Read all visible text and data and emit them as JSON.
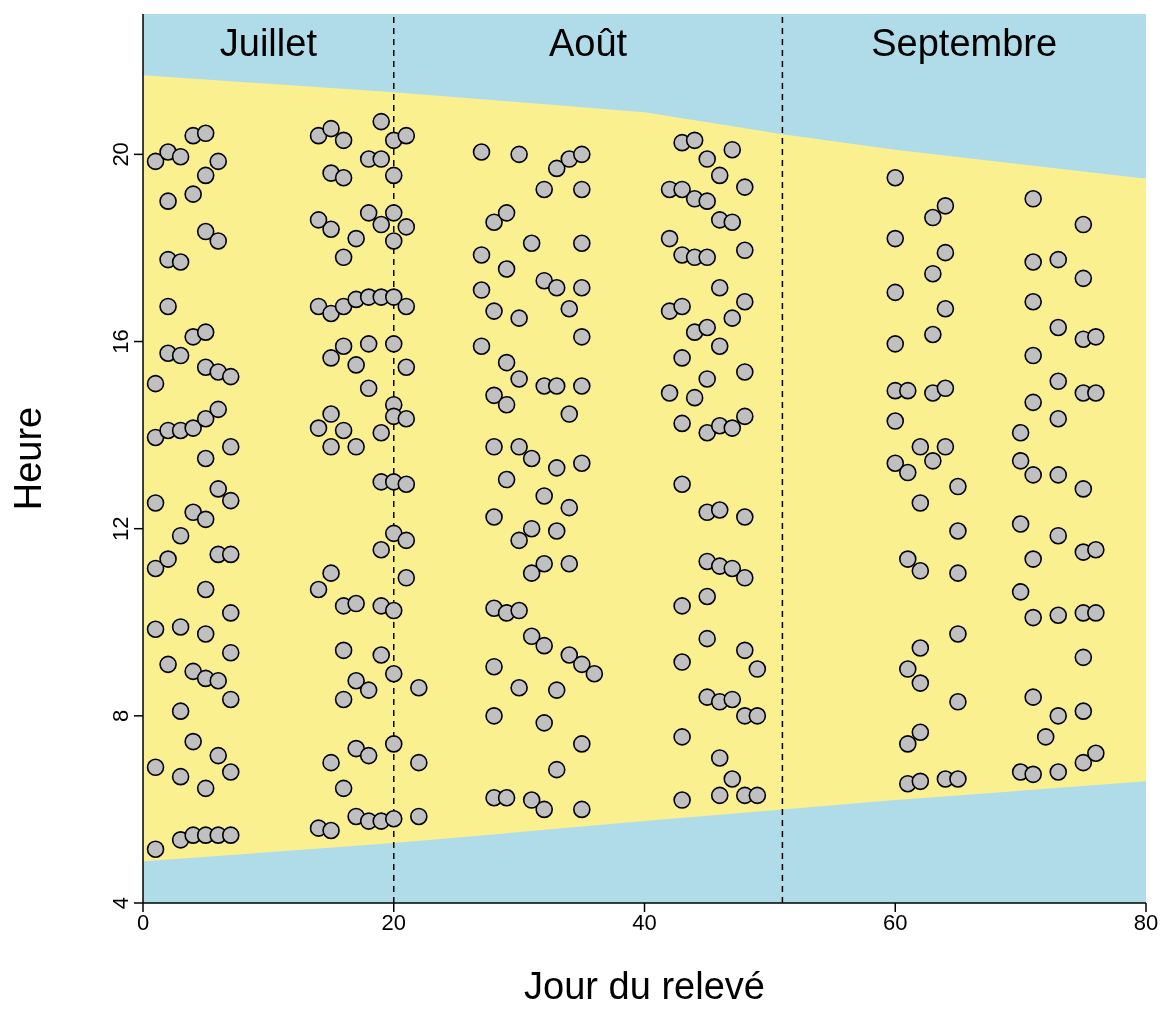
{
  "chart_data": {
    "type": "scatter",
    "xlabel": "Jour du relevé",
    "ylabel": "Heure",
    "xlim": [
      0,
      80
    ],
    "xticks": [
      0,
      20,
      40,
      60,
      80
    ],
    "ylim": [
      4,
      23
    ],
    "yticks": [
      4,
      8,
      12,
      16,
      20
    ],
    "grid": false,
    "legend": false,
    "ref_lines": [
      {
        "axis": "x",
        "value": 20,
        "color": "#000000",
        "line_style": "dashed"
      },
      {
        "axis": "x",
        "value": 51,
        "color": "#000000",
        "line_style": "dashed"
      }
    ],
    "bands": [
      {
        "axis": "y",
        "from": 19.48,
        "to": 23,
        "color": "#b0dcea"
      }
    ],
    "annotations": [
      "Juillet",
      "Août",
      "Septembre"
    ],
    "series": [
      {
        "color": "#c0c0c0",
        "marker": "circle",
        "x": [
          1,
          1,
          1,
          1,
          1,
          1,
          1,
          1,
          2,
          2,
          2,
          2,
          2,
          2,
          2,
          2,
          3,
          3,
          3,
          3,
          3,
          3,
          3,
          3,
          3,
          4,
          4,
          4,
          4,
          4,
          4,
          4,
          4,
          5,
          5,
          5,
          5,
          5,
          5,
          5,
          5,
          5,
          5,
          5,
          5,
          5,
          6,
          6,
          6,
          6,
          6,
          6,
          6,
          6,
          6,
          7,
          7,
          7,
          7,
          7,
          7,
          7,
          7,
          7,
          14,
          14,
          14,
          14,
          14,
          14,
          15,
          15,
          15,
          15,
          15,
          15,
          15,
          15,
          15,
          15,
          16,
          16,
          16,
          16,
          16,
          16,
          16,
          16,
          16,
          16,
          17,
          17,
          17,
          17,
          17,
          17,
          17,
          17,
          18,
          18,
          18,
          18,
          18,
          18,
          18,
          18,
          19,
          19,
          19,
          19,
          19,
          19,
          19,
          19,
          19,
          19,
          20,
          20,
          20,
          20,
          20,
          20,
          20,
          20,
          20,
          20,
          20,
          20,
          20,
          20,
          21,
          21,
          21,
          21,
          21,
          21,
          21,
          21,
          22,
          22,
          22,
          27,
          27,
          27,
          27,
          28,
          28,
          28,
          28,
          28,
          28,
          28,
          28,
          28,
          29,
          29,
          29,
          29,
          29,
          29,
          29,
          30,
          30,
          30,
          30,
          30,
          30,
          30,
          31,
          31,
          31,
          31,
          31,
          31,
          32,
          32,
          32,
          32,
          32,
          32,
          32,
          32,
          33,
          33,
          33,
          33,
          33,
          33,
          33,
          34,
          34,
          34,
          34,
          34,
          34,
          35,
          35,
          35,
          35,
          35,
          35,
          35,
          35,
          35,
          35,
          36,
          42,
          42,
          42,
          42,
          43,
          43,
          43,
          43,
          43,
          43,
          43,
          43,
          43,
          43,
          43,
          44,
          44,
          44,
          44,
          44,
          45,
          45,
          45,
          45,
          45,
          45,
          45,
          45,
          45,
          45,
          45,
          46,
          46,
          46,
          46,
          46,
          46,
          46,
          46,
          46,
          46,
          47,
          47,
          47,
          47,
          47,
          47,
          47,
          48,
          48,
          48,
          48,
          48,
          48,
          48,
          48,
          48,
          48,
          49,
          49,
          49,
          60,
          60,
          60,
          60,
          60,
          60,
          60,
          61,
          61,
          61,
          61,
          61,
          61,
          62,
          62,
          62,
          62,
          62,
          62,
          62,
          63,
          63,
          63,
          63,
          63,
          64,
          64,
          64,
          64,
          64,
          64,
          65,
          65,
          65,
          65,
          65,
          65,
          70,
          70,
          70,
          70,
          70,
          71,
          71,
          71,
          71,
          71,
          71,
          71,
          71,
          71,
          71,
          72,
          73,
          73,
          73,
          73,
          73,
          73,
          73,
          73,
          73,
          75,
          75,
          75,
          75,
          75,
          75,
          75,
          75,
          75,
          75,
          76,
          76,
          76,
          76,
          76
        ],
        "values": [
          19.85,
          15.1,
          13.95,
          12.55,
          11.15,
          9.85,
          6.9,
          5.15,
          20.05,
          19.0,
          17.75,
          16.75,
          15.75,
          14.1,
          11.35,
          9.1,
          19.95,
          17.7,
          15.7,
          14.1,
          11.85,
          9.9,
          8.1,
          6.7,
          5.35,
          20.4,
          19.15,
          16.1,
          14.15,
          12.35,
          8.95,
          7.45,
          5.45,
          20.45,
          19.55,
          18.35,
          16.2,
          15.45,
          14.35,
          13.5,
          12.2,
          10.7,
          9.75,
          8.8,
          6.45,
          5.45,
          19.85,
          18.15,
          15.35,
          14.55,
          12.85,
          11.45,
          8.75,
          7.15,
          5.45,
          15.25,
          13.75,
          12.6,
          11.45,
          10.2,
          9.35,
          8.35,
          6.8,
          5.45,
          20.4,
          18.6,
          16.75,
          14.15,
          10.7,
          5.6,
          20.55,
          19.6,
          18.4,
          16.6,
          15.65,
          14.45,
          13.75,
          11.05,
          7.0,
          5.55,
          20.3,
          19.5,
          17.8,
          16.75,
          15.9,
          14.1,
          10.35,
          9.4,
          8.35,
          6.45,
          18.2,
          16.9,
          15.5,
          13.75,
          10.4,
          8.75,
          7.3,
          5.85,
          19.9,
          18.75,
          16.95,
          15.95,
          15.0,
          8.55,
          7.15,
          5.75,
          20.7,
          19.9,
          18.5,
          16.95,
          14.05,
          13.0,
          11.55,
          10.35,
          9.3,
          5.75,
          20.3,
          19.55,
          18.75,
          18.15,
          16.95,
          15.95,
          14.65,
          14.4,
          13.0,
          11.9,
          10.25,
          8.9,
          7.4,
          5.8,
          20.4,
          18.45,
          16.75,
          15.45,
          14.35,
          12.95,
          11.75,
          10.95,
          8.6,
          7.0,
          5.85,
          20.05,
          17.85,
          17.1,
          15.9,
          18.55,
          16.65,
          14.85,
          13.75,
          12.25,
          10.3,
          9.05,
          8.0,
          6.25,
          18.75,
          17.55,
          15.55,
          14.65,
          13.05,
          10.2,
          6.25,
          20.0,
          16.5,
          15.2,
          13.75,
          11.75,
          10.25,
          8.6,
          18.1,
          13.5,
          12.0,
          11.05,
          9.7,
          6.2,
          19.25,
          17.3,
          15.05,
          12.7,
          11.25,
          9.5,
          7.85,
          6.0,
          19.7,
          17.15,
          15.05,
          13.3,
          11.95,
          8.55,
          6.85,
          19.9,
          16.7,
          14.45,
          12.45,
          11.25,
          9.3,
          20.0,
          19.25,
          18.1,
          17.15,
          16.1,
          15.05,
          13.4,
          9.1,
          7.4,
          6.0,
          8.9,
          19.25,
          18.2,
          16.65,
          14.9,
          20.25,
          19.25,
          17.85,
          16.75,
          15.65,
          14.25,
          12.95,
          10.35,
          9.15,
          7.55,
          6.2,
          20.3,
          19.05,
          17.8,
          16.2,
          14.8,
          19.9,
          19.0,
          17.8,
          16.3,
          15.2,
          14.05,
          12.35,
          11.3,
          10.55,
          9.65,
          8.4,
          19.55,
          18.6,
          17.15,
          15.9,
          14.2,
          12.4,
          11.2,
          8.3,
          7.1,
          6.3,
          20.1,
          18.55,
          16.5,
          14.15,
          11.15,
          8.35,
          6.65,
          19.3,
          17.95,
          16.85,
          15.35,
          14.4,
          12.25,
          10.95,
          9.4,
          8.0,
          6.3,
          9.0,
          8.0,
          6.3,
          19.5,
          18.2,
          17.05,
          15.95,
          14.95,
          14.3,
          13.4,
          14.95,
          13.2,
          11.35,
          9.0,
          7.4,
          6.55,
          13.75,
          12.55,
          11.1,
          9.45,
          8.7,
          7.65,
          6.6,
          18.65,
          17.45,
          16.15,
          14.9,
          13.45,
          18.9,
          17.9,
          16.7,
          15.0,
          13.75,
          6.65,
          12.9,
          11.95,
          11.05,
          9.75,
          8.3,
          6.65,
          14.05,
          13.45,
          12.1,
          10.65,
          6.8,
          19.05,
          17.7,
          16.85,
          15.7,
          14.7,
          13.15,
          11.35,
          10.1,
          8.4,
          6.75,
          7.55,
          17.75,
          16.3,
          15.15,
          14.35,
          13.15,
          11.85,
          10.15,
          8.0,
          6.8,
          18.5,
          17.35,
          16.05,
          14.9,
          12.85,
          11.5,
          10.2,
          9.25,
          8.1,
          7.0,
          16.1,
          14.9,
          11.55,
          10.2,
          7.2
        ]
      },
      {
        "type": "area",
        "color": "#fbf08f",
        "x": [
          0,
          20,
          40,
          51,
          60,
          80
        ],
        "values": [
          21.69,
          21.33,
          20.9,
          20.43,
          20.1,
          19.48
        ]
      },
      {
        "type": "area",
        "color": "#b0dcea",
        "x": [
          0,
          20,
          40,
          51,
          60,
          80
        ],
        "values": [
          4.89,
          5.28,
          5.75,
          6.0,
          6.2,
          6.6
        ]
      }
    ]
  }
}
